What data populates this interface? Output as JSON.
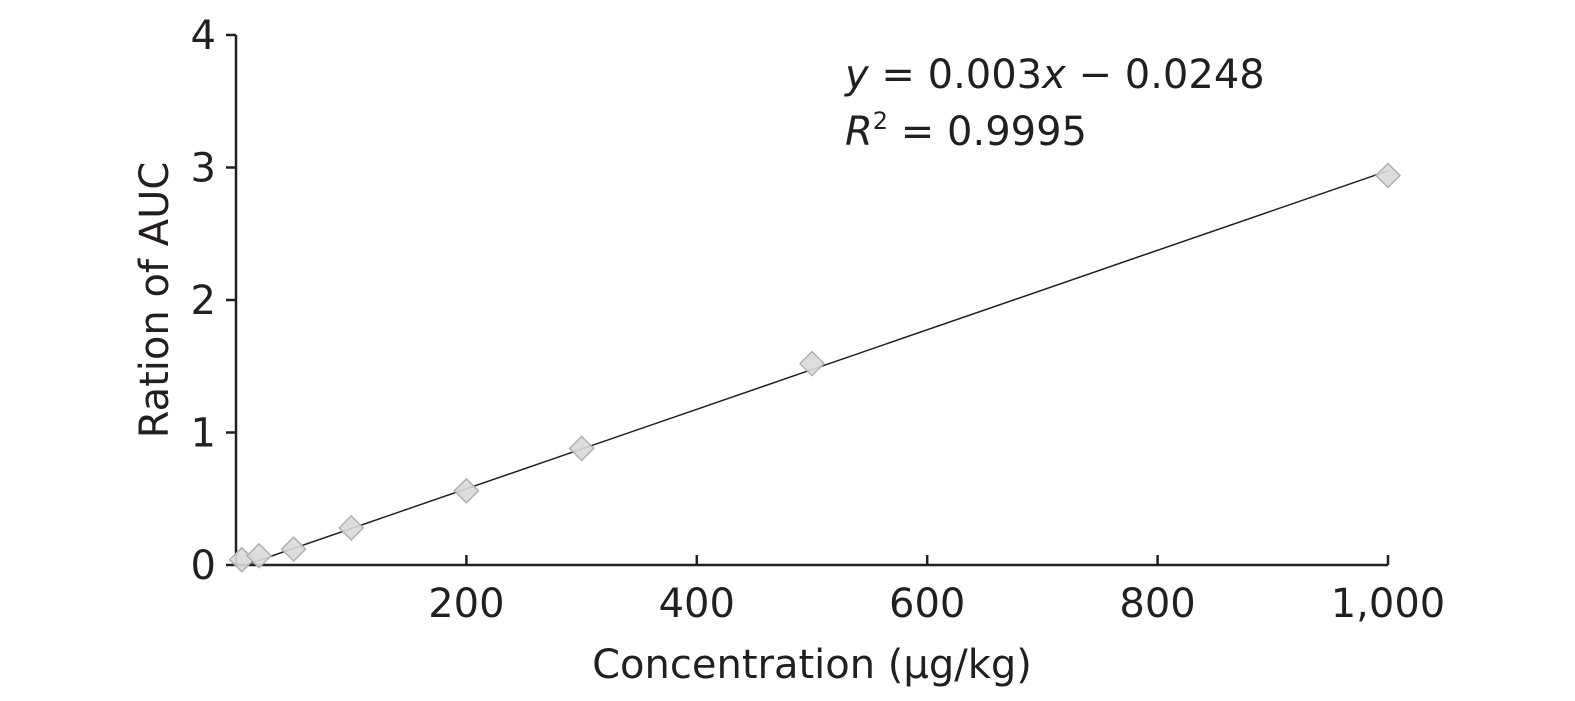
{
  "chart_data": {
    "type": "scatter",
    "xlabel": "Concentration (μg/kg)",
    "ylabel": "Ration of AUC",
    "xlim": [
      0,
      1000
    ],
    "ylim": [
      0,
      4
    ],
    "x_ticks": [
      200,
      400,
      600,
      800,
      1000
    ],
    "x_tick_labels": [
      "200",
      "400",
      "600",
      "800",
      "1,000"
    ],
    "y_ticks": [
      0,
      1,
      2,
      3,
      4
    ],
    "y_tick_labels": [
      "0",
      "1",
      "2",
      "3",
      "4"
    ],
    "grid": false,
    "series": [
      {
        "marker": "diamond",
        "points": [
          {
            "x": 5,
            "y": 0.04
          },
          {
            "x": 20,
            "y": 0.07
          },
          {
            "x": 50,
            "y": 0.12
          },
          {
            "x": 100,
            "y": 0.28
          },
          {
            "x": 200,
            "y": 0.56
          },
          {
            "x": 300,
            "y": 0.88
          },
          {
            "x": 500,
            "y": 1.52
          },
          {
            "x": 1000,
            "y": 2.94
          }
        ]
      }
    ],
    "trendline": {
      "slope": 0.003,
      "intercept": -0.0248,
      "equation_parts": {
        "y": "y",
        "eq1": " = 0.003",
        "x": "x",
        "eq2": " − 0.0248",
        "r": "R",
        "sup": "2",
        "eq3": " = 0.9995"
      }
    },
    "colors": {
      "axis": "#231f20",
      "marker_fill": "#d9d9d9",
      "marker_stroke": "#b0b0b0",
      "trendline": "#222222"
    }
  }
}
